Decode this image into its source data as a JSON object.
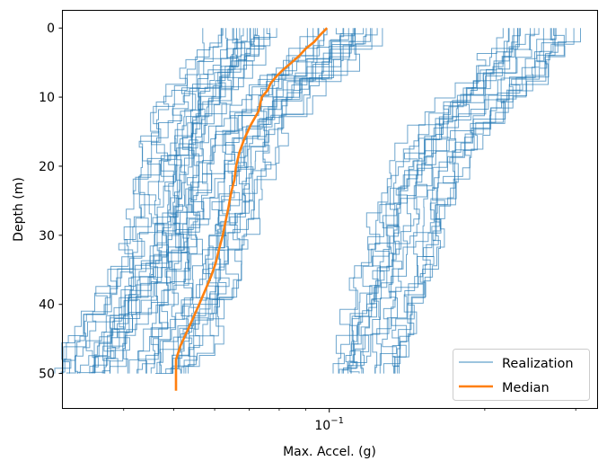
{
  "chart_data": {
    "type": "line",
    "title": "",
    "xlabel": "Max. Accel. (g)",
    "ylabel": "Depth (m)",
    "x_scale": "log",
    "xlim": [
      0.0305,
      0.33
    ],
    "ylim": [
      55,
      -2.5
    ],
    "y_inverted": true,
    "x_major_ticks": [
      {
        "value": 0.1,
        "base": "10",
        "exponent": "−1"
      }
    ],
    "x_minor_ticks": [
      0.04,
      0.05,
      0.06,
      0.07,
      0.08,
      0.09,
      0.2,
      0.3
    ],
    "y_ticks": [
      0,
      10,
      20,
      30,
      40,
      50
    ],
    "grid": false,
    "legend": {
      "position": "lower-right",
      "entries": [
        {
          "label": "Realization",
          "color": "#1f77b4",
          "style": "thin"
        },
        {
          "label": "Median",
          "color": "#ff7f0e",
          "style": "thick"
        }
      ]
    },
    "realization_groups": [
      {
        "count": 20,
        "profile": [
          [
            0,
            0.069
          ],
          [
            5,
            0.0614
          ],
          [
            10,
            0.0548
          ],
          [
            15,
            0.0513
          ],
          [
            20,
            0.0494
          ],
          [
            25,
            0.0482
          ],
          [
            30,
            0.0468
          ],
          [
            35,
            0.0437
          ],
          [
            40,
            0.0395
          ],
          [
            45,
            0.0357
          ],
          [
            50,
            0.0343
          ]
        ]
      },
      {
        "count": 20,
        "profile": [
          [
            0,
            0.11
          ],
          [
            5,
            0.092
          ],
          [
            10,
            0.078
          ],
          [
            15,
            0.07
          ],
          [
            20,
            0.066
          ],
          [
            25,
            0.063
          ],
          [
            30,
            0.06
          ],
          [
            35,
            0.058
          ],
          [
            40,
            0.055
          ],
          [
            45,
            0.051
          ],
          [
            50,
            0.0475
          ]
        ]
      },
      {
        "count": 20,
        "profile": [
          [
            0,
            0.254
          ],
          [
            5,
            0.226
          ],
          [
            10,
            0.192
          ],
          [
            15,
            0.166
          ],
          [
            20,
            0.153
          ],
          [
            25,
            0.145
          ],
          [
            30,
            0.139
          ],
          [
            35,
            0.133
          ],
          [
            40,
            0.127
          ],
          [
            45,
            0.121
          ],
          [
            50,
            0.118
          ]
        ]
      }
    ],
    "series": [
      {
        "name": "Median",
        "color": "#ff7f0e",
        "points": [
          [
            0,
            0.099
          ],
          [
            1,
            0.096
          ],
          [
            2,
            0.0935
          ],
          [
            3,
            0.09
          ],
          [
            4,
            0.0875
          ],
          [
            5,
            0.0845
          ],
          [
            6,
            0.0815
          ],
          [
            7,
            0.079
          ],
          [
            8,
            0.077
          ],
          [
            9,
            0.076
          ],
          [
            10,
            0.074
          ],
          [
            12,
            0.073
          ],
          [
            14,
            0.0705
          ],
          [
            16,
            0.0685
          ],
          [
            18,
            0.067
          ],
          [
            20,
            0.066
          ],
          [
            22,
            0.0655
          ],
          [
            24,
            0.0645
          ],
          [
            26,
            0.0638
          ],
          [
            28,
            0.063
          ],
          [
            30,
            0.0622
          ],
          [
            32,
            0.0612
          ],
          [
            34,
            0.0603
          ],
          [
            36,
            0.059
          ],
          [
            38,
            0.0575
          ],
          [
            40,
            0.056
          ],
          [
            42,
            0.0545
          ],
          [
            44,
            0.053
          ],
          [
            46,
            0.0515
          ],
          [
            48,
            0.0505
          ],
          [
            50,
            0.0505
          ],
          [
            52.5,
            0.0505
          ]
        ]
      }
    ]
  }
}
